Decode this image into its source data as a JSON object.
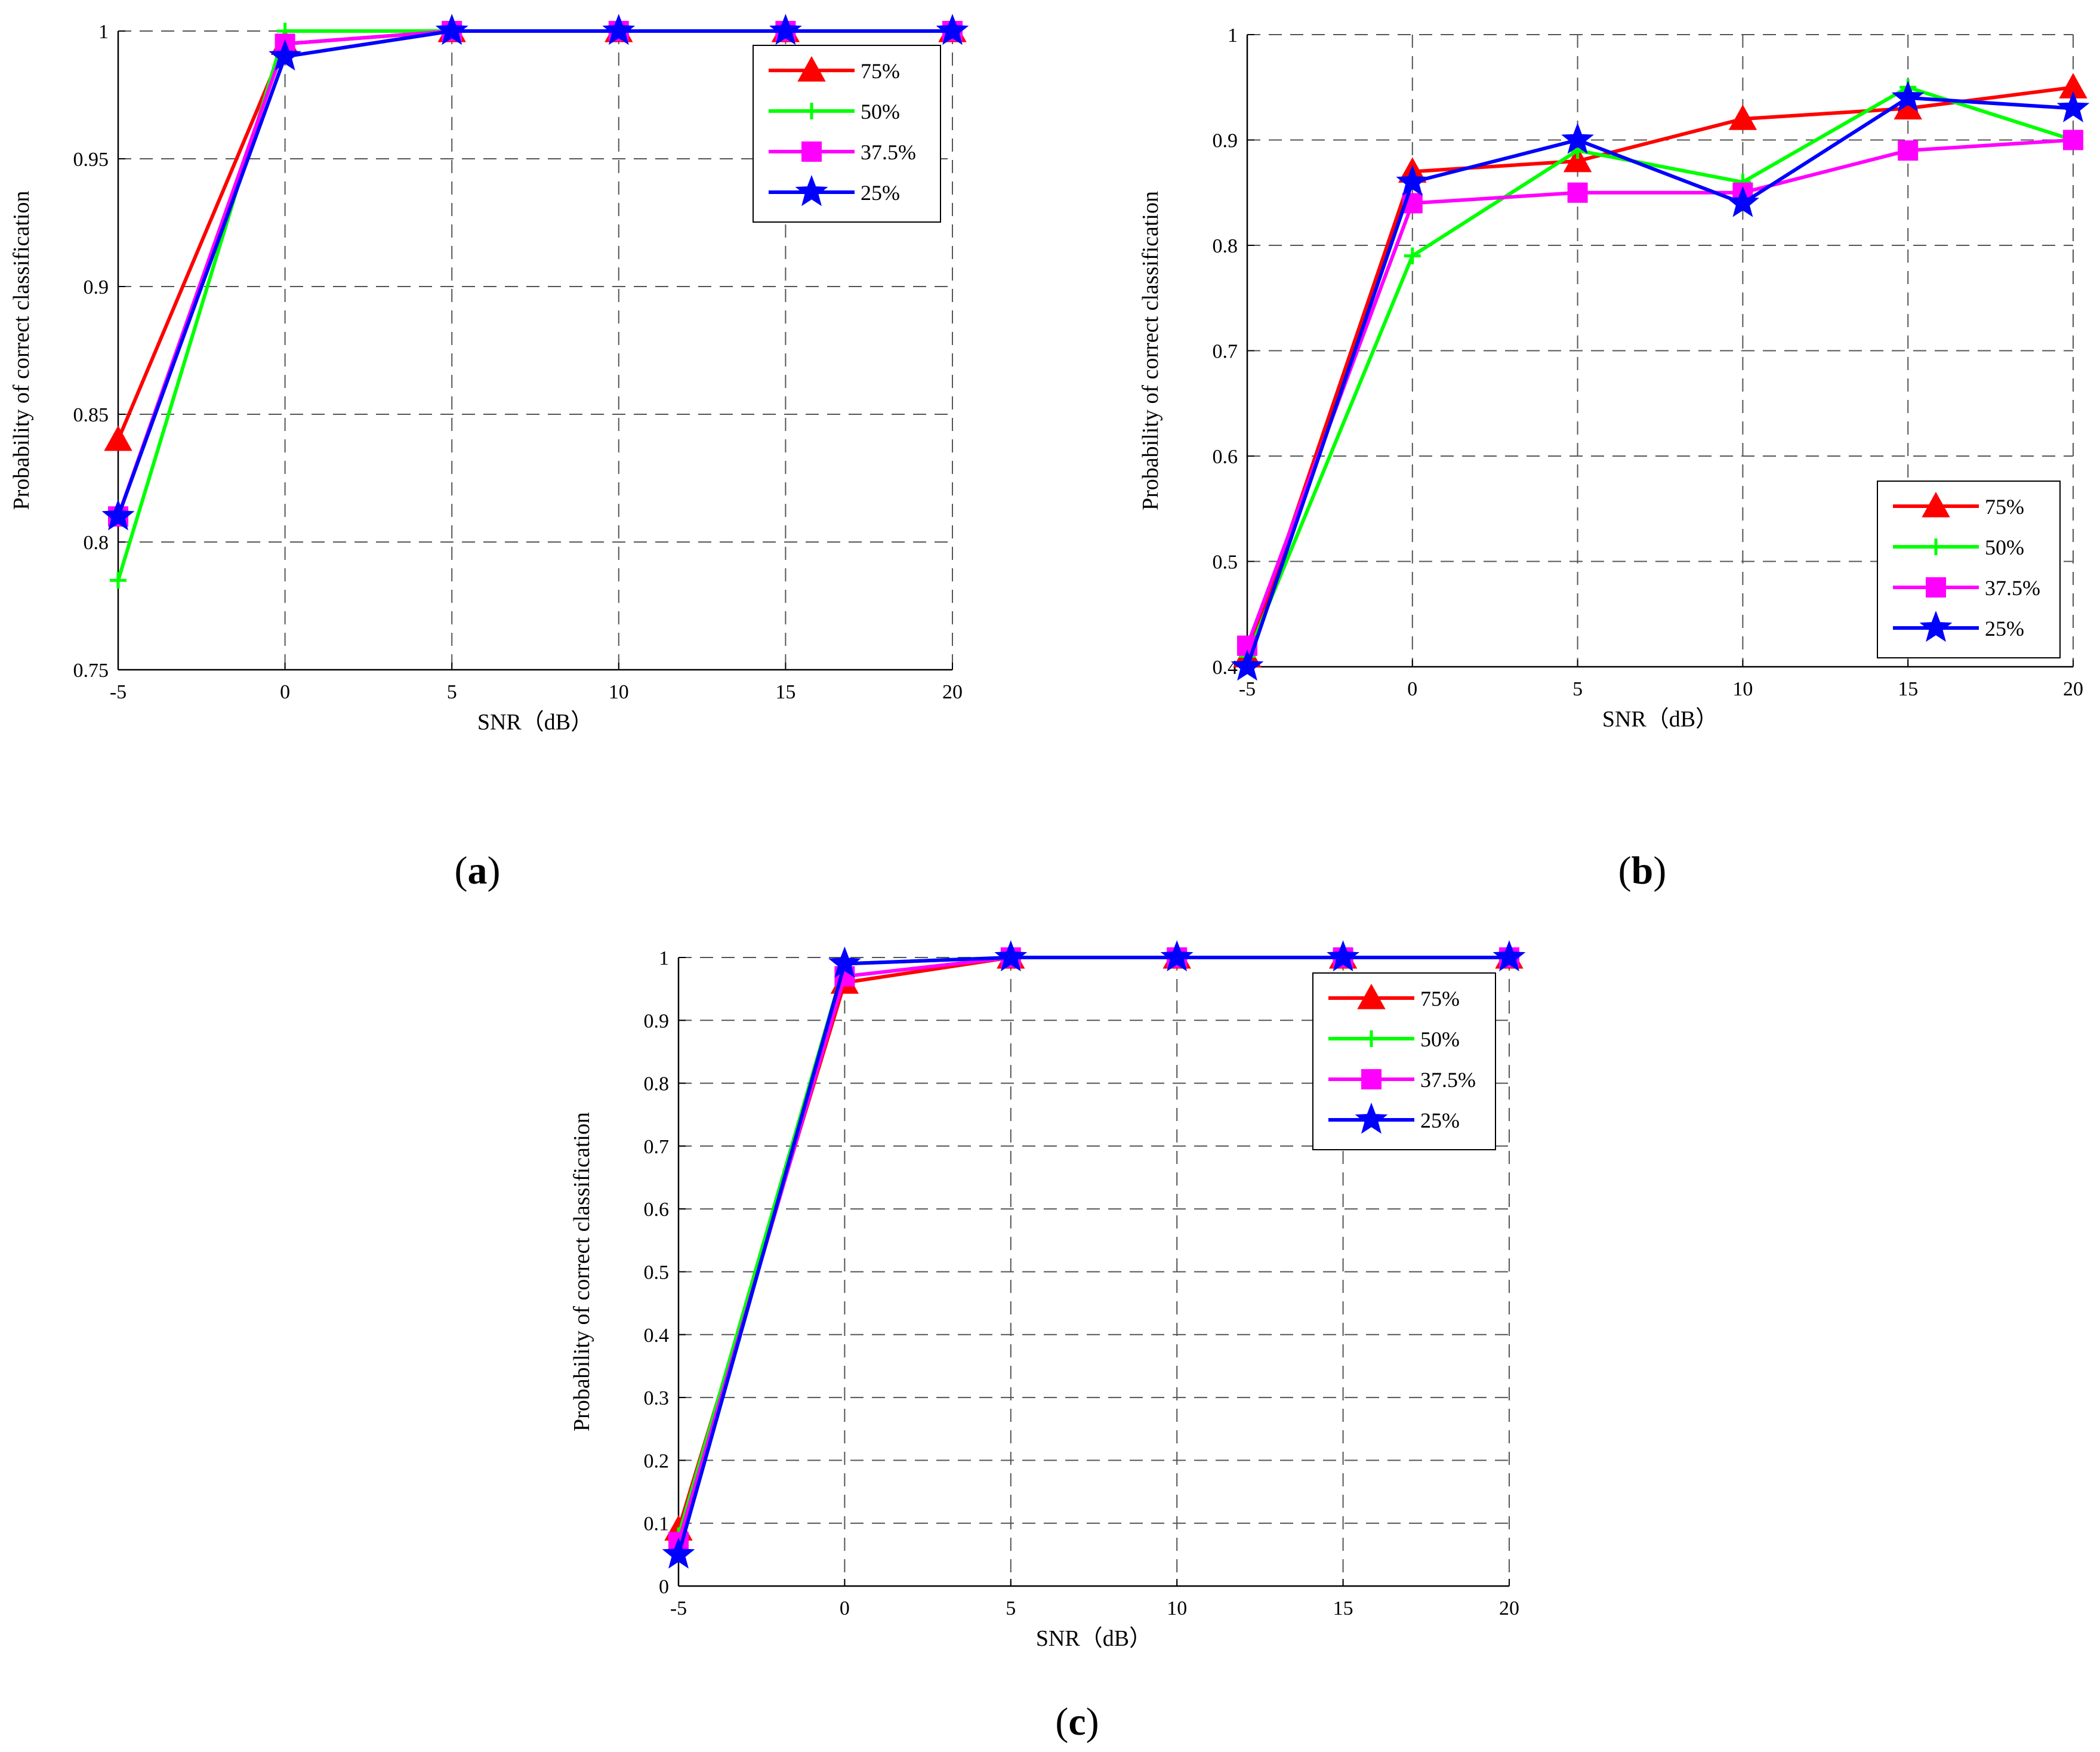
{
  "figure": {
    "series_styles": [
      {
        "name": "75%",
        "color": "#ff0000",
        "marker": "triangle"
      },
      {
        "name": "50%",
        "color": "#00ff00",
        "marker": "plus"
      },
      {
        "name": "37.5%",
        "color": "#ff00ff",
        "marker": "square"
      },
      {
        "name": "25%",
        "color": "#0000ff",
        "marker": "star"
      }
    ]
  },
  "chart_data": [
    {
      "id": "a",
      "panel_label": "a",
      "type": "line",
      "xlabel": "SNR（dB）",
      "ylabel": "Probability of correct classification",
      "x": [
        -5,
        0,
        5,
        10,
        15,
        20
      ],
      "xlim": [
        -5,
        20
      ],
      "ylim": [
        0.75,
        1
      ],
      "xticks": [
        "-5",
        "0",
        "5",
        "10",
        "15",
        "20"
      ],
      "yticks": [
        "0.75",
        "0.8",
        "0.85",
        "0.9",
        "0.95",
        "1"
      ],
      "ytick_values": [
        0.75,
        0.8,
        0.85,
        0.9,
        0.95,
        1
      ],
      "grid": true,
      "legend_position": "top-right",
      "series": [
        {
          "name": "75%",
          "values": [
            0.84,
            0.995,
            1,
            1,
            1,
            1
          ]
        },
        {
          "name": "50%",
          "values": [
            0.785,
            1,
            1,
            1,
            1,
            1
          ]
        },
        {
          "name": "37.5%",
          "values": [
            0.81,
            0.995,
            1,
            1,
            1,
            1
          ]
        },
        {
          "name": "25%",
          "values": [
            0.81,
            0.99,
            1,
            1,
            1,
            1
          ]
        }
      ]
    },
    {
      "id": "b",
      "panel_label": "b",
      "type": "line",
      "xlabel": "SNR（dB）",
      "ylabel": "Probability of correct classification",
      "x": [
        -5,
        0,
        5,
        10,
        15,
        20
      ],
      "xlim": [
        -5,
        20
      ],
      "ylim": [
        0.4,
        1
      ],
      "xticks": [
        "-5",
        "0",
        "5",
        "10",
        "15",
        "20"
      ],
      "yticks": [
        "0.4",
        "0.5",
        "0.6",
        "0.7",
        "0.8",
        "0.9",
        "1"
      ],
      "ytick_values": [
        0.4,
        0.5,
        0.6,
        0.7,
        0.8,
        0.9,
        1
      ],
      "grid": true,
      "legend_position": "bottom-right",
      "series": [
        {
          "name": "75%",
          "values": [
            0.41,
            0.87,
            0.88,
            0.92,
            0.93,
            0.95
          ]
        },
        {
          "name": "50%",
          "values": [
            0.41,
            0.79,
            0.89,
            0.86,
            0.95,
            0.9
          ]
        },
        {
          "name": "37.5%",
          "values": [
            0.42,
            0.84,
            0.85,
            0.85,
            0.89,
            0.9
          ]
        },
        {
          "name": "25%",
          "values": [
            0.4,
            0.86,
            0.9,
            0.84,
            0.94,
            0.93
          ]
        }
      ]
    },
    {
      "id": "c",
      "panel_label": "c",
      "type": "line",
      "xlabel": "SNR（dB）",
      "ylabel": "Probability of correct classification",
      "x": [
        -5,
        0,
        5,
        10,
        15,
        20
      ],
      "xlim": [
        -5,
        20
      ],
      "ylim": [
        0,
        1
      ],
      "xticks": [
        "-5",
        "0",
        "5",
        "10",
        "15",
        "20"
      ],
      "yticks": [
        "0",
        "0.1",
        "0.2",
        "0.3",
        "0.4",
        "0.5",
        "0.6",
        "0.7",
        "0.8",
        "0.9",
        "1"
      ],
      "ytick_values": [
        0,
        0.1,
        0.2,
        0.3,
        0.4,
        0.5,
        0.6,
        0.7,
        0.8,
        0.9,
        1
      ],
      "grid": true,
      "legend_position": "top-right",
      "series": [
        {
          "name": "75%",
          "values": [
            0.09,
            0.96,
            1,
            1,
            1,
            1
          ]
        },
        {
          "name": "50%",
          "values": [
            0.08,
            0.99,
            1,
            1,
            1,
            1
          ]
        },
        {
          "name": "37.5%",
          "values": [
            0.07,
            0.97,
            1,
            1,
            1,
            1
          ]
        },
        {
          "name": "25%",
          "values": [
            0.05,
            0.99,
            1,
            1,
            1,
            1
          ]
        }
      ]
    }
  ]
}
